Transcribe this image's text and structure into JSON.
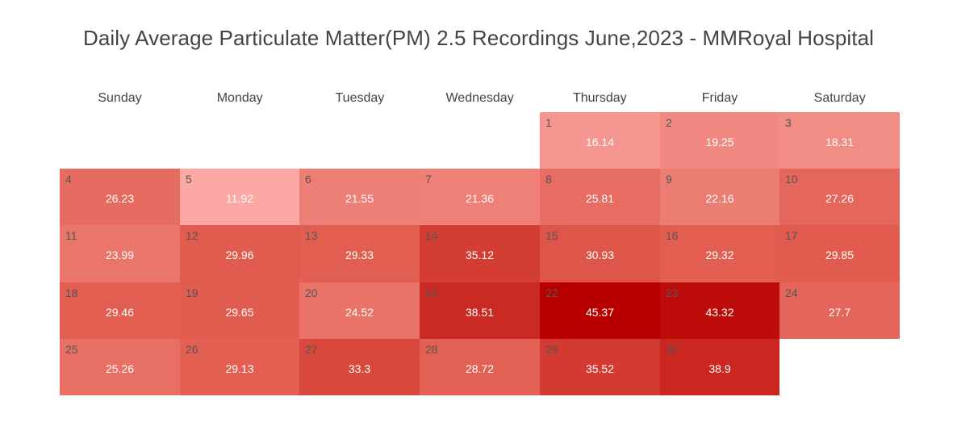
{
  "chart_data": {
    "type": "heatmap",
    "title": "Daily Average Particulate Matter(PM) 2.5 Recordings June,2023 - MMRoyal Hospital",
    "weekdays": [
      "Sunday",
      "Monday",
      "Tuesday",
      "Wednesday",
      "Thursday",
      "Friday",
      "Saturday"
    ],
    "first_weekday_index": 4,
    "days": [
      1,
      2,
      3,
      4,
      5,
      6,
      7,
      8,
      9,
      10,
      11,
      12,
      13,
      14,
      15,
      16,
      17,
      18,
      19,
      20,
      21,
      22,
      23,
      24,
      25,
      26,
      27,
      28,
      29,
      30
    ],
    "values": [
      16.14,
      19.25,
      18.31,
      26.23,
      11.92,
      21.55,
      21.36,
      25.81,
      22.16,
      27.26,
      23.99,
      29.96,
      29.33,
      35.12,
      30.93,
      29.32,
      29.85,
      29.46,
      29.65,
      24.52,
      38.51,
      45.37,
      43.32,
      27.7,
      25.26,
      29.13,
      33.3,
      28.72,
      35.52,
      38.9
    ],
    "value_labels": [
      "16.14",
      "19.25",
      "18.31",
      "26.23",
      "11.92",
      "21.55",
      "21.36",
      "25.81",
      "22.16",
      "27.26",
      "23.99",
      "29.96",
      "29.33",
      "35.12",
      "30.93",
      "29.32",
      "29.85",
      "29.46",
      "29.65",
      "24.52",
      "38.51",
      "45.37",
      "43.32",
      "27.7",
      "25.26",
      "29.13",
      "33.3",
      "28.72",
      "35.52",
      "38.9"
    ],
    "colorscale": {
      "low": "#fca8a5",
      "mid": "#e05a4c",
      "high": "#b90000"
    }
  }
}
